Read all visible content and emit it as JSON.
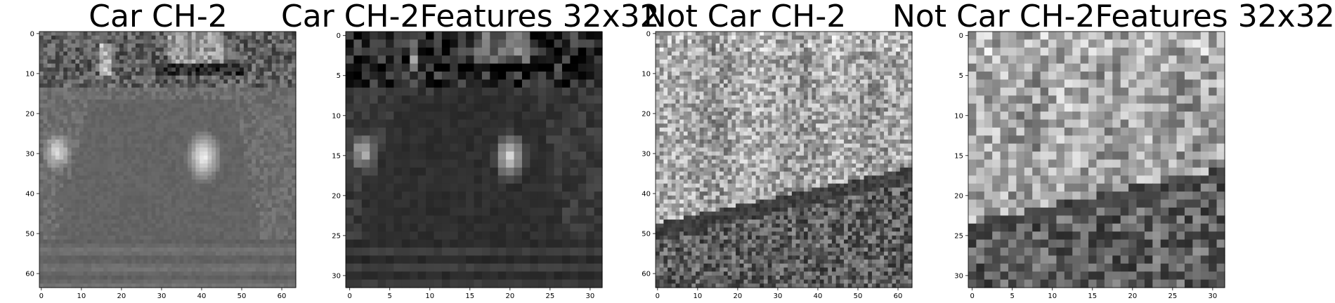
{
  "figure": {
    "panels": [
      {
        "title": "Car CH-2",
        "resolution": 64,
        "x_ticks": [
          "0",
          "10",
          "20",
          "30",
          "40",
          "50",
          "60"
        ],
        "y_ticks": [
          "0",
          "10",
          "20",
          "30",
          "40",
          "50",
          "60"
        ],
        "tick_values": [
          0,
          10,
          20,
          30,
          40,
          50,
          60
        ]
      },
      {
        "title": "Car CH-2Features 32x32",
        "resolution": 32,
        "x_ticks": [
          "0",
          "5",
          "10",
          "15",
          "20",
          "25",
          "30"
        ],
        "y_ticks": [
          "0",
          "5",
          "10",
          "15",
          "20",
          "25",
          "30"
        ],
        "tick_values": [
          0,
          5,
          10,
          15,
          20,
          25,
          30
        ]
      },
      {
        "title": "Not Car CH-2",
        "resolution": 64,
        "x_ticks": [
          "0",
          "10",
          "20",
          "30",
          "40",
          "50",
          "60"
        ],
        "y_ticks": [
          "0",
          "10",
          "20",
          "30",
          "40",
          "50",
          "60"
        ],
        "tick_values": [
          0,
          10,
          20,
          30,
          40,
          50,
          60
        ]
      },
      {
        "title": "Not Car CH-2Features 32x32",
        "resolution": 32,
        "x_ticks": [
          "0",
          "5",
          "10",
          "15",
          "20",
          "25",
          "30"
        ],
        "y_ticks": [
          "0",
          "5",
          "10",
          "15",
          "20",
          "25",
          "30"
        ],
        "tick_values": [
          0,
          5,
          10,
          15,
          20,
          25,
          30
        ]
      }
    ]
  }
}
